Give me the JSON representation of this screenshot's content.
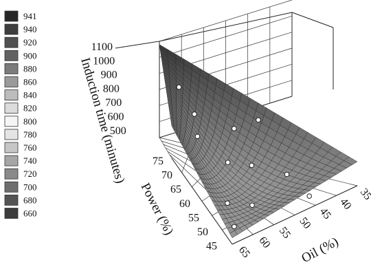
{
  "chart_data": {
    "type": "surface",
    "zlabel": "Induction time (minutes)",
    "ylabel": "Power (%)",
    "xlabel": "Oil (%)",
    "z_ticks": [
      "1100",
      "1000",
      "900",
      "800",
      "700",
      "600",
      "500"
    ],
    "z_range": [
      500,
      1100
    ],
    "power_ticks": [
      "75",
      "70",
      "65",
      "60",
      "55",
      "50",
      "45"
    ],
    "power_range": [
      45,
      75
    ],
    "oil_ticks": [
      "65",
      "60",
      "55",
      "50",
      "45",
      "40",
      "35"
    ],
    "oil_range": [
      35,
      65
    ],
    "grid": true,
    "legend_position": "left",
    "legend": {
      "labels": [
        "941",
        "940",
        "920",
        "900",
        "880",
        "860",
        "840",
        "820",
        "800",
        "780",
        "760",
        "740",
        "720",
        "700",
        "680",
        "660"
      ],
      "colors": [
        "#262626",
        "#3e3e3e",
        "#505050",
        "#626262",
        "#7c7c7c",
        "#9a9a9a",
        "#bcbcbc",
        "#dcdcdc",
        "#f5f5f5",
        "#e4e4e4",
        "#c6c6c6",
        "#a6a6a6",
        "#8a8a8a",
        "#6e6e6e",
        "#545454",
        "#3c3c3c"
      ]
    },
    "surface_corners": [
      {
        "oil": 35,
        "power": 75,
        "time": 1080
      },
      {
        "oil": 65,
        "power": 75,
        "time": 700
      },
      {
        "oil": 35,
        "power": 45,
        "time": 650
      },
      {
        "oil": 65,
        "power": 45,
        "time": 540
      },
      {
        "oil": 50,
        "power": 60,
        "time": 570
      }
    ],
    "points": [
      {
        "oil": 40,
        "power": 72,
        "time": 870
      },
      {
        "oil": 52,
        "power": 68,
        "time": 820
      },
      {
        "oil": 60,
        "power": 65,
        "time": 780
      },
      {
        "oil": 35,
        "power": 60,
        "time": 760
      },
      {
        "oil": 42,
        "power": 62,
        "time": 740
      },
      {
        "oil": 55,
        "power": 58,
        "time": 690
      },
      {
        "oil": 50,
        "power": 55,
        "time": 670
      },
      {
        "oil": 46,
        "power": 50,
        "time": 640
      },
      {
        "oil": 62,
        "power": 52,
        "time": 600
      },
      {
        "oil": 58,
        "power": 48,
        "time": 610
      },
      {
        "oil": 64,
        "power": 46,
        "time": 580
      },
      {
        "oil": 44,
        "power": 47,
        "time": 520
      }
    ]
  }
}
